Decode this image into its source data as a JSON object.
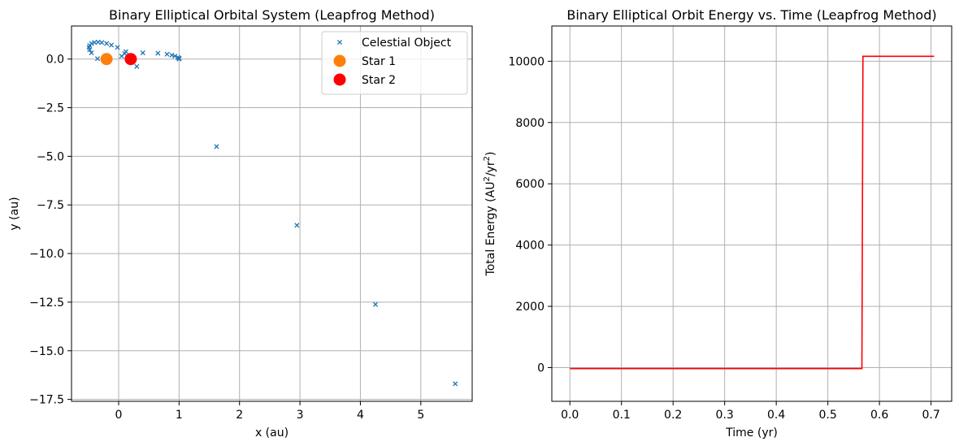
{
  "chart_data": [
    {
      "type": "scatter",
      "title": "Binary Elliptical Orbital System (Leapfrog Method)",
      "xlabel": "x (au)",
      "ylabel": "y (au)",
      "xlim": [
        -0.78,
        5.85
      ],
      "ylim": [
        -17.6,
        1.7
      ],
      "xticks": [
        0,
        1,
        2,
        3,
        4,
        5
      ],
      "xtick_labels": [
        "0",
        "1",
        "2",
        "3",
        "4",
        "5"
      ],
      "yticks": [
        0.0,
        -2.5,
        -5.0,
        -7.5,
        -10.0,
        -12.5,
        -15.0,
        -17.5
      ],
      "ytick_labels": [
        "0.0",
        "−2.5",
        "−5.0",
        "−7.5",
        "−10.0",
        "−12.5",
        "−15.0",
        "−17.5"
      ],
      "grid": true,
      "legend": "top-right",
      "series": [
        {
          "name": "Celestial Object",
          "marker": "x",
          "color": "#1f77b4",
          "x": [
            1.0,
            0.98,
            0.93,
            0.88,
            0.8,
            0.65,
            0.4,
            0.3,
            0.12,
            0.1,
            0.05,
            -0.02,
            -0.12,
            -0.2,
            -0.28,
            -0.34,
            -0.4,
            -0.45,
            -0.48,
            -0.49,
            -0.48,
            -0.45,
            -0.35,
            1.0,
            1.62,
            2.95,
            4.25,
            5.57
          ],
          "y": [
            0.0,
            0.08,
            0.15,
            0.2,
            0.25,
            0.3,
            0.32,
            -0.38,
            0.38,
            0.28,
            0.15,
            0.6,
            0.72,
            0.8,
            0.85,
            0.87,
            0.85,
            0.8,
            0.7,
            0.6,
            0.48,
            0.32,
            0.02,
            0.05,
            -4.5,
            -8.55,
            -12.62,
            -16.7
          ]
        },
        {
          "name": "Star 1",
          "marker": "o",
          "color": "#ff7f0e",
          "x": [
            -0.2
          ],
          "y": [
            0.0
          ]
        },
        {
          "name": "Star 2",
          "marker": "o",
          "color": "#ff0000",
          "x": [
            0.2
          ],
          "y": [
            0.0
          ]
        }
      ]
    },
    {
      "type": "line",
      "title": "Binary Elliptical Orbit Energy vs. Time (Leapfrog Method)",
      "xlabel": "Time (yr)",
      "ylabel_parts": [
        "Total Energy (AU",
        "2",
        "/yr",
        "2",
        ")"
      ],
      "xlim": [
        -0.035,
        0.74
      ],
      "ylim": [
        -1100,
        11150
      ],
      "xticks": [
        0.0,
        0.1,
        0.2,
        0.3,
        0.4,
        0.5,
        0.6,
        0.7
      ],
      "xtick_labels": [
        "0.0",
        "0.1",
        "0.2",
        "0.3",
        "0.4",
        "0.5",
        "0.6",
        "0.7"
      ],
      "yticks": [
        0,
        2000,
        4000,
        6000,
        8000,
        10000
      ],
      "ytick_labels": [
        "0",
        "2000",
        "4000",
        "6000",
        "8000",
        "10000"
      ],
      "grid": true,
      "series": [
        {
          "color": "#ff0000",
          "x": [
            0.0,
            0.2,
            0.566,
            0.568,
            0.706
          ],
          "y": [
            -30,
            -30,
            -30,
            10160,
            10160
          ]
        }
      ]
    }
  ]
}
